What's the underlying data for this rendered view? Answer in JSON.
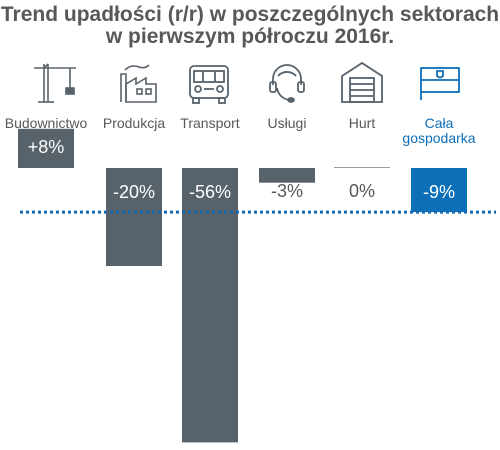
{
  "title_line1": "Trend upadłości (r/r) w poszczególnych sektorach",
  "title_line2": "w pierwszym półroczu 2016r.",
  "colors": {
    "bar": "#58626b",
    "highlight": "#0d6fb8",
    "label": "#58585a",
    "highlight_label": "#0d6fb8",
    "reference_line": "#1469b3",
    "icon": "#58626b"
  },
  "chart_data": {
    "type": "bar",
    "title": "Trend upadłości (r/r) w poszczególnych sektorach w pierwszym półroczu 2016r.",
    "categories": [
      "Budownictwo",
      "Produkcja",
      "Transport",
      "Usługi",
      "Hurt",
      "Cała gospodarka"
    ],
    "category_lines": [
      [
        "Budownictwo"
      ],
      [
        "Produkcja"
      ],
      [
        "Transport"
      ],
      [
        "Usługi"
      ],
      [
        "Hurt"
      ],
      [
        "Cała",
        "gospodarka"
      ]
    ],
    "values": [
      8,
      -20,
      -56,
      -3,
      0,
      -9
    ],
    "value_labels": [
      "+8%",
      "-20%",
      "-56%",
      "-3%",
      "0%",
      "-9%"
    ],
    "highlight_index": 5,
    "reference_value": -9,
    "icons": [
      "crane-icon",
      "factory-icon",
      "truck-icon",
      "headset-icon",
      "warehouse-icon",
      "flag-icon"
    ]
  }
}
